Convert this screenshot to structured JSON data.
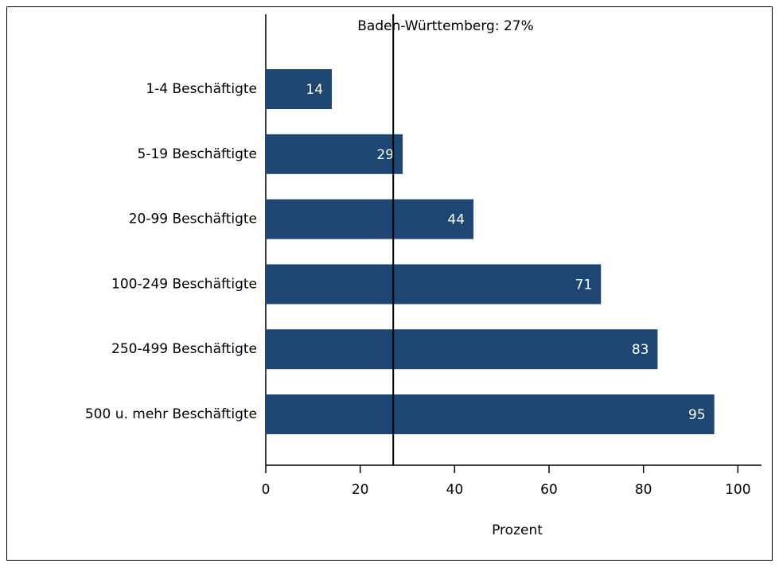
{
  "chart_data": {
    "type": "bar",
    "orientation": "horizontal",
    "categories": [
      "1-4 Beschäftigte",
      "5-19 Beschäftigte",
      "20-99 Beschäftigte",
      "100-249 Beschäftigte",
      "250-499 Beschäftigte",
      "500 u. mehr Beschäftigte"
    ],
    "values": [
      14,
      29,
      44,
      71,
      83,
      95
    ],
    "color": "#1d4673",
    "x_label": "Prozent",
    "xlim": [
      0,
      105
    ],
    "xticks": [
      0,
      20,
      40,
      60,
      80,
      100
    ],
    "reference_line": {
      "value": 27,
      "label": "Baden-Württemberg: 27%"
    }
  }
}
